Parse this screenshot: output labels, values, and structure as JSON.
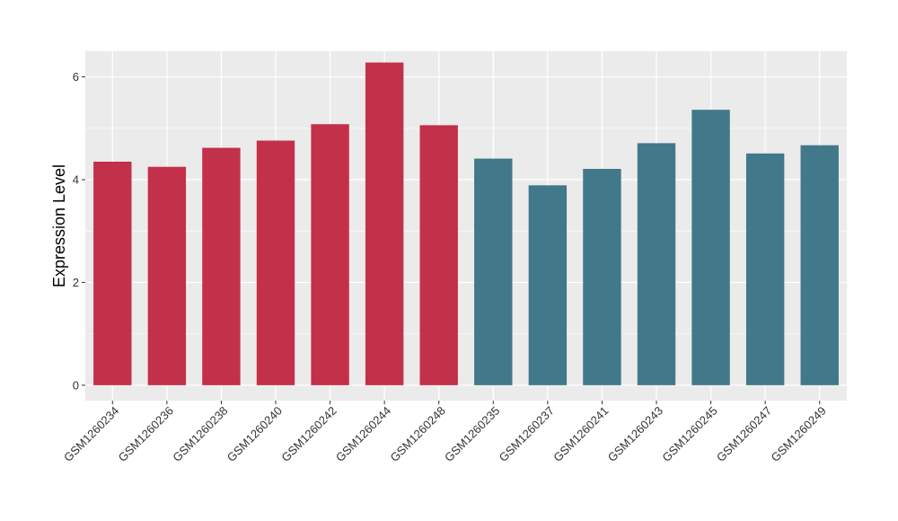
{
  "chart_data": {
    "type": "bar",
    "title": "",
    "xlabel": "",
    "ylabel": "Expression Level",
    "ylim": [
      -0.3,
      6.5
    ],
    "yticks": [
      0,
      2,
      4,
      6
    ],
    "grid": true,
    "panel_background": "#EBEBEB",
    "grid_color": "#FFFFFF",
    "categories": [
      "GSM1260234",
      "GSM1260236",
      "GSM1260238",
      "GSM1260240",
      "GSM1260242",
      "GSM1260244",
      "GSM1260248",
      "GSM1260235",
      "GSM1260237",
      "GSM1260241",
      "GSM1260243",
      "GSM1260245",
      "GSM1260247",
      "GSM1260249"
    ],
    "values": [
      4.35,
      4.25,
      4.62,
      4.76,
      5.08,
      6.28,
      5.06,
      4.41,
      3.89,
      4.21,
      4.71,
      5.36,
      4.51,
      4.67
    ],
    "bar_colors": [
      "#C3304A",
      "#C3304A",
      "#C3304A",
      "#C3304A",
      "#C3304A",
      "#C3304A",
      "#C3304A",
      "#41788A",
      "#41788A",
      "#41788A",
      "#41788A",
      "#41788A",
      "#41788A",
      "#41788A"
    ]
  }
}
